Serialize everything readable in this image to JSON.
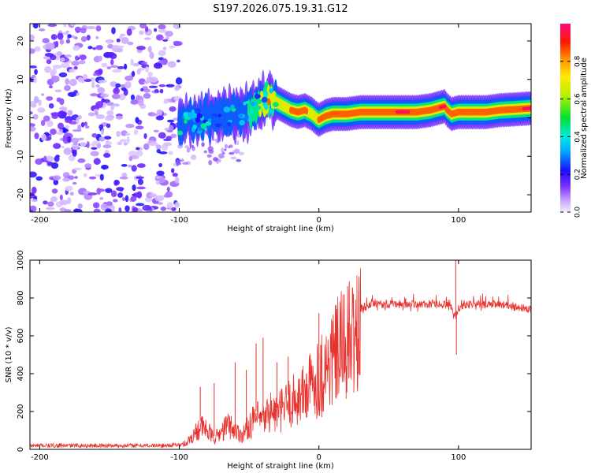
{
  "title": "S197.2026.075.19.31.G12",
  "chart_data": [
    {
      "type": "heatmap",
      "name": "spectrogram",
      "xlabel": "Height of straight line (km)",
      "ylabel": "Frequency (Hz)",
      "xlim": [
        -207,
        152
      ],
      "ylim": [
        -24.5,
        24.5
      ],
      "xticks": [
        -200,
        -100,
        0,
        100
      ],
      "yticks": [
        -20,
        -10,
        0,
        10,
        20
      ],
      "colorbar": {
        "label": "Normalized spectral amplitude",
        "range": [
          0,
          1
        ],
        "ticks": [
          "0.0",
          "0.2",
          "0.4",
          "0.6",
          "0.8"
        ],
        "tick_values": [
          0.0,
          0.2,
          0.4,
          0.6,
          0.8
        ]
      },
      "noise_region_x": [
        -207,
        -100
      ],
      "ridge": {
        "x": [
          -100,
          -90,
          -80,
          -70,
          -60,
          -50,
          -45,
          -40,
          -36,
          -33,
          -30,
          -25,
          -20,
          -15,
          -10,
          -5,
          -2,
          0,
          5,
          10,
          20,
          30,
          40,
          50,
          60,
          70,
          80,
          85,
          90,
          92,
          95,
          100,
          110,
          120,
          130,
          140,
          152
        ],
        "f": [
          -1,
          -1,
          0,
          0.5,
          1,
          2,
          3,
          4,
          5,
          4.5,
          4,
          3,
          2,
          1.5,
          2,
          1,
          0,
          -0.5,
          0.5,
          1,
          1,
          1.5,
          1.5,
          1.5,
          1.5,
          1.5,
          2,
          2.5,
          3,
          2,
          1,
          1.5,
          1.5,
          1.5,
          2,
          2.2,
          2.5
        ],
        "amplitude": [
          0.25,
          0.3,
          0.3,
          0.35,
          0.35,
          0.4,
          0.55,
          0.7,
          0.8,
          0.75,
          0.7,
          0.75,
          0.8,
          0.8,
          0.85,
          0.7,
          0.75,
          0.8,
          0.85,
          0.9,
          0.85,
          0.8,
          0.8,
          0.88,
          0.95,
          0.88,
          0.85,
          0.9,
          0.95,
          0.85,
          0.8,
          0.85,
          0.9,
          0.9,
          0.85,
          0.88,
          0.95
        ]
      }
    },
    {
      "type": "line",
      "name": "snr",
      "xlabel": "Height of straight line (km)",
      "ylabel": "SNR (10 * v/v)",
      "xlim": [
        -207,
        152
      ],
      "ylim": [
        0,
        1000
      ],
      "xticks": [
        -200,
        -100,
        0,
        100
      ],
      "yticks": [
        0,
        200,
        400,
        600,
        800,
        1000
      ],
      "color": "#e8322e",
      "envelope": {
        "x": [
          -207,
          -110,
          -100,
          -95,
          -90,
          -85,
          -80,
          -75,
          -70,
          -65,
          -60,
          -55,
          -50,
          -45,
          -40,
          -35,
          -30,
          -25,
          -20,
          -15,
          -10,
          -5,
          0,
          5,
          10,
          15,
          20,
          25,
          30,
          35,
          40,
          50,
          60,
          70,
          80,
          90,
          95,
          98,
          100,
          105,
          110,
          120,
          130,
          140,
          152
        ],
        "y": [
          20,
          20,
          25,
          40,
          90,
          150,
          120,
          70,
          110,
          160,
          120,
          90,
          150,
          200,
          180,
          250,
          220,
          270,
          300,
          330,
          360,
          420,
          470,
          520,
          580,
          640,
          680,
          720,
          740,
          750,
          760,
          760,
          760,
          760,
          760,
          760,
          740,
          700,
          740,
          760,
          760,
          760,
          760,
          750,
          730
        ]
      },
      "spikes": [
        {
          "x": -85,
          "y": 330
        },
        {
          "x": -75,
          "y": 350
        },
        {
          "x": -60,
          "y": 460
        },
        {
          "x": -52,
          "y": 420
        },
        {
          "x": -45,
          "y": 560
        },
        {
          "x": -40,
          "y": 590
        },
        {
          "x": -30,
          "y": 460
        },
        {
          "x": -22,
          "y": 490
        },
        {
          "x": 0,
          "y": 720
        },
        {
          "x": 2,
          "y": 170
        },
        {
          "x": 98,
          "y": 1000
        },
        {
          "x": 98.5,
          "y": 500
        }
      ]
    }
  ]
}
